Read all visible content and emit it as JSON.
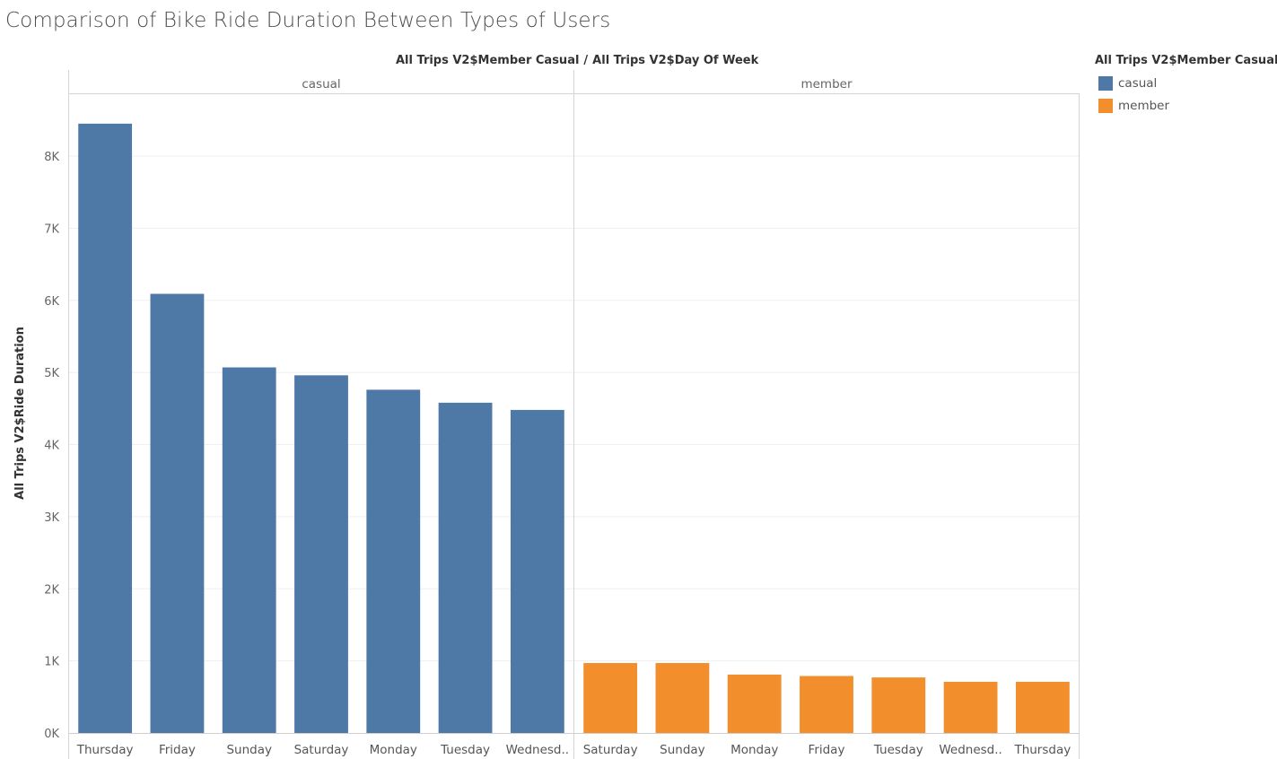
{
  "title": "Comparison of Bike Ride Duration Between Types of Users",
  "header": {
    "left": "All Trips V2$Member Casual",
    "separator": "/",
    "right": "All Trips V2$Day Of Week"
  },
  "legend": {
    "title": "All Trips V2$Member Casual",
    "items": [
      {
        "label": "casual",
        "color": "#4e79a7"
      },
      {
        "label": "member",
        "color": "#f28e2b"
      }
    ]
  },
  "chart_data": {
    "type": "bar",
    "title": "Comparison of Bike Ride Duration Between Types of Users",
    "ylabel": "All Trips V2$Ride Duration",
    "ylim": [
      0,
      8900
    ],
    "yticks": [
      0,
      1000,
      2000,
      3000,
      4000,
      5000,
      6000,
      7000,
      8000
    ],
    "ytick_labels": [
      "0K",
      "1K",
      "2K",
      "3K",
      "4K",
      "5K",
      "6K",
      "7K",
      "8K"
    ],
    "grid": true,
    "legend_position": "top-right",
    "panels": [
      {
        "name": "casual",
        "color": "#4e79a7",
        "categories": [
          "Thursday",
          "Friday",
          "Sunday",
          "Saturday",
          "Monday",
          "Tuesday",
          "Wednesd.."
        ],
        "values": [
          8450,
          6090,
          5070,
          4960,
          4760,
          4580,
          4480
        ]
      },
      {
        "name": "member",
        "color": "#f28e2b",
        "categories": [
          "Saturday",
          "Sunday",
          "Monday",
          "Friday",
          "Tuesday",
          "Wednesd..",
          "Thursday"
        ],
        "values": [
          970,
          970,
          810,
          790,
          770,
          710,
          710
        ]
      }
    ]
  }
}
